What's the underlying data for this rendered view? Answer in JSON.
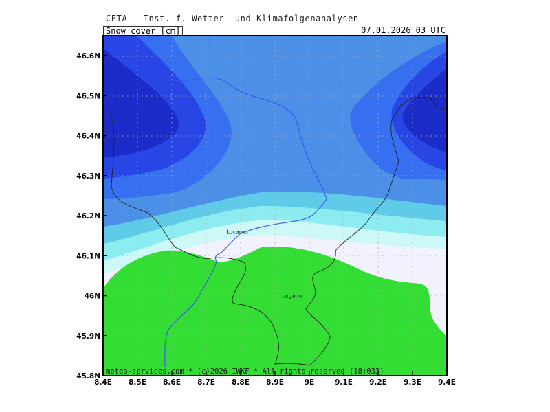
{
  "header": {
    "title": "CETA — Inst. f. Wetter— und Klimafolgenanalysen —",
    "variable": "Snow_cover_[cm]",
    "datetime": "07.01.2026 03 UTC"
  },
  "footer": {
    "copyright": "meteo-services.com * (c)2026 IWKF * All rights reserved (18+033)"
  },
  "map": {
    "lon_range": [
      8.4,
      9.4
    ],
    "lat_range": [
      45.8,
      46.65
    ],
    "lon_ticks": [
      "8.4E",
      "8.5E",
      "8.6E",
      "8.7E",
      "8.8E",
      "8.9E",
      "9E",
      "9.1E",
      "9.2E",
      "9.3E",
      "9.4E"
    ],
    "lat_ticks": [
      "45.8N",
      "45.9N",
      "46N",
      "46.1N",
      "46.2N",
      "46.3N",
      "46.4N",
      "46.5N",
      "46.6N"
    ],
    "grid": true,
    "places": [
      {
        "name": "Locarno",
        "lon": 8.79,
        "lat": 46.16
      },
      {
        "name": "Lugano",
        "lon": 8.95,
        "lat": 46.0
      }
    ],
    "colors": {
      "green": "#33dd33",
      "white_band": "#f2f2ff",
      "cyan_light": "#ccf8f8",
      "cyan": "#8cecf0",
      "teal_blue": "#5fcbe8",
      "mid_blue": "#4c8fe6",
      "blue": "#3670f0",
      "deep_blue": "#2846e6",
      "darkest_blue": "#1c2cc8",
      "border": "#222222",
      "lake_river": "#3355ee"
    }
  }
}
